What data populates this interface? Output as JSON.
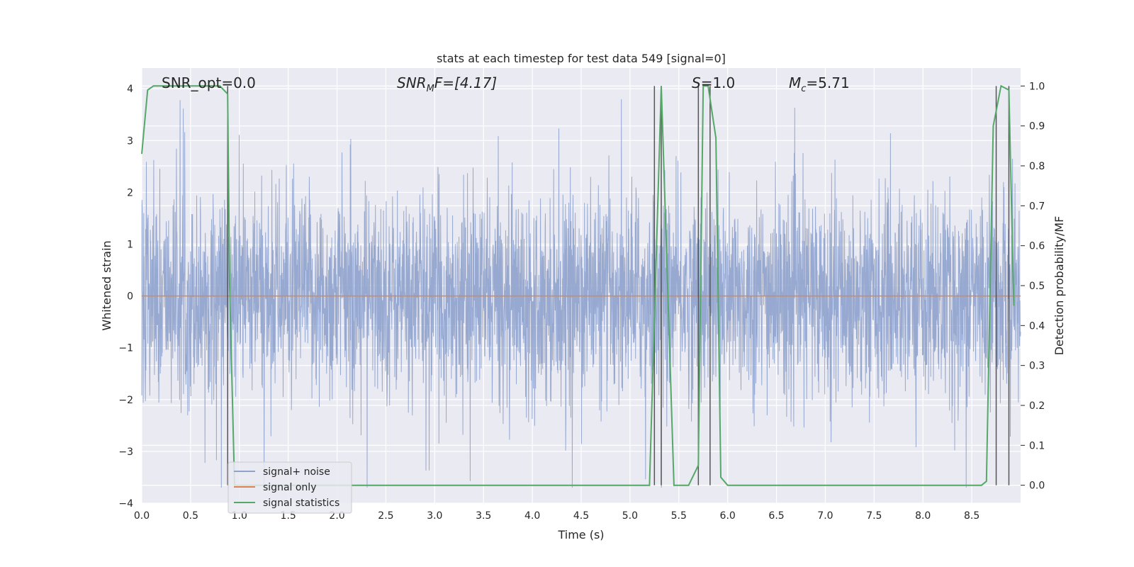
{
  "chart_data": {
    "type": "line",
    "title": "stats at each timestep for test data 549 [signal=0]",
    "xlabel": "Time (s)",
    "ylabel": "Whitened strain",
    "y2label": "Detection probability/MF",
    "xlim": [
      0,
      9.0
    ],
    "ylim": [
      -4.0,
      4.4
    ],
    "y2lim": [
      -0.045,
      1.045
    ],
    "xticks": [
      "0.0",
      "0.5",
      "1.0",
      "1.5",
      "2.0",
      "2.5",
      "3.0",
      "3.5",
      "4.0",
      "4.5",
      "5.0",
      "5.5",
      "6.0",
      "6.5",
      "7.0",
      "7.5",
      "8.0",
      "8.5"
    ],
    "xtick_values": [
      0.0,
      0.5,
      1.0,
      1.5,
      2.0,
      2.5,
      3.0,
      3.5,
      4.0,
      4.5,
      5.0,
      5.5,
      6.0,
      6.5,
      7.0,
      7.5,
      8.0,
      8.5
    ],
    "yticks": [
      "−4",
      "−3",
      "−2",
      "−1",
      "0",
      "1",
      "2",
      "3",
      "4"
    ],
    "ytick_values": [
      -4,
      -3,
      -2,
      -1,
      0,
      1,
      2,
      3,
      4
    ],
    "y2ticks": [
      "0.0",
      "0.1",
      "0.2",
      "0.3",
      "0.4",
      "0.5",
      "0.6",
      "0.7",
      "0.8",
      "0.9",
      "1.0"
    ],
    "y2tick_values": [
      0.0,
      0.1,
      0.2,
      0.3,
      0.4,
      0.5,
      0.6,
      0.7,
      0.8,
      0.9,
      1.0
    ],
    "grid": true,
    "legend_position": "lower-left",
    "annotations": [
      {
        "text": "SNR_opt=0.0",
        "x_frac": "left"
      },
      {
        "text": "SNR_MF=[4.17]",
        "x_frac": "center-left"
      },
      {
        "text": "S=1.0",
        "x_frac": "center-right"
      },
      {
        "text": "M_c=5.71",
        "x_frac": "right"
      }
    ],
    "series": [
      {
        "name": "signal+ noise",
        "color": "#8ea2cc",
        "axis": "left",
        "kind": "noise",
        "amplitude_typical": 1.3,
        "amplitude_peak": 3.8,
        "duration_s": 9.0
      },
      {
        "name": "signal only",
        "color": "#dd8452",
        "axis": "left",
        "x": [
          0.0,
          9.0
        ],
        "y": [
          0.0,
          0.0
        ]
      },
      {
        "name": "signal statistics",
        "color": "#55a868",
        "axis": "right",
        "x": [
          0.0,
          0.06,
          0.12,
          0.2,
          0.8,
          0.88,
          0.9,
          0.95,
          5.2,
          5.32,
          5.45,
          5.6,
          5.7,
          5.75,
          5.8,
          5.88,
          5.93,
          6.0,
          8.6,
          8.65,
          8.72,
          8.8,
          8.88,
          8.93
        ],
        "y": [
          0.83,
          0.99,
          1.0,
          1.0,
          1.0,
          0.98,
          0.5,
          0.0,
          0.0,
          1.0,
          0.0,
          0.0,
          0.05,
          1.0,
          1.0,
          0.87,
          0.02,
          0.0,
          0.0,
          0.01,
          0.9,
          1.0,
          0.99,
          0.45
        ]
      }
    ],
    "vertical_markers": [
      0.88,
      5.25,
      5.32,
      5.7,
      5.82,
      8.75,
      8.88
    ]
  },
  "legend": {
    "items": [
      {
        "label": "signal+ noise",
        "color": "#8ea2cc"
      },
      {
        "label": "signal only",
        "color": "#dd8452"
      },
      {
        "label": "signal statistics",
        "color": "#55a868"
      }
    ]
  },
  "annotations": {
    "snr_opt": "SNR_opt=0.0",
    "snr_mf_prefix": "SNR",
    "snr_mf_sub": "M",
    "snr_mf_suffix": "F=[4.17]",
    "s_prefix": "S",
    "s_suffix": "=1.0",
    "mc_prefix": "M",
    "mc_sub": "c",
    "mc_suffix": "=5.71"
  }
}
